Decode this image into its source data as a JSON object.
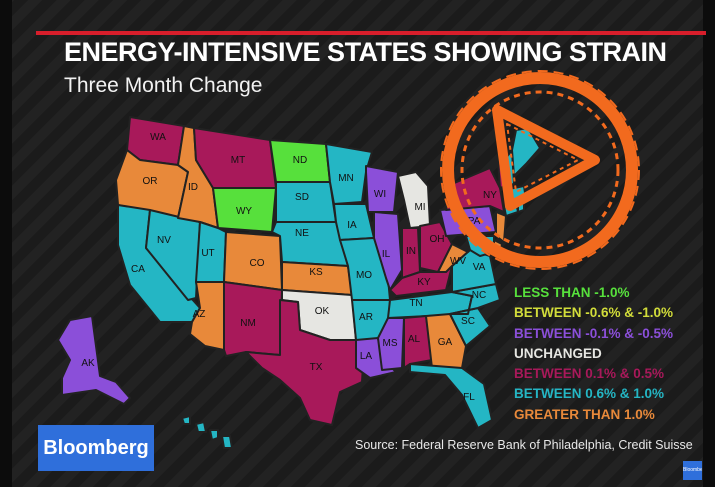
{
  "title": "ENERGY-INTENSIVE STATES SHOWING STRAIN",
  "subtitle": "Three Month Change",
  "source": "Source: Federal Reserve Bank of Philadelphia, Credit Suisse",
  "logo": "Bloomberg",
  "mini_logo": "Bloomberg",
  "colors": {
    "less_than_minus_1": "#57e03c",
    "minus_0_6_to_minus_1": "#d2dd3a",
    "minus_0_1_to_minus_0_5": "#8b4fd9",
    "unchanged": "#e6e6e2",
    "plus_0_1_to_0_5": "#a8195a",
    "plus_0_6_to_1": "#24b6c4",
    "greater_than_1": "#e8893a"
  },
  "legend": [
    {
      "label": "LESS THAN -1.0%",
      "color_key": "less_than_minus_1"
    },
    {
      "label": "BETWEEN -0.6% & -1.0%",
      "color_key": "minus_0_6_to_minus_1"
    },
    {
      "label": "BETWEEN -0.1% & -0.5%",
      "color_key": "minus_0_1_to_minus_0_5"
    },
    {
      "label": "UNCHANGED",
      "color_key": "unchanged"
    },
    {
      "label": "BETWEEN 0.1% & 0.5%",
      "color_key": "plus_0_1_to_0_5"
    },
    {
      "label": "BETWEEN 0.6% & 1.0%",
      "color_key": "plus_0_6_to_1"
    },
    {
      "label": "GREATER THAN 1.0%",
      "color_key": "greater_than_1"
    }
  ],
  "states": {
    "WA": {
      "label": "WA",
      "category": "plus_0_1_to_0_5"
    },
    "OR": {
      "label": "OR",
      "category": "greater_than_1"
    },
    "CA": {
      "label": "CA",
      "category": "plus_0_6_to_1"
    },
    "NV": {
      "label": "NV",
      "category": "plus_0_6_to_1"
    },
    "ID": {
      "label": "ID",
      "category": "greater_than_1"
    },
    "MT": {
      "label": "MT",
      "category": "plus_0_1_to_0_5"
    },
    "WY": {
      "label": "WY",
      "category": "less_than_minus_1"
    },
    "UT": {
      "label": "UT",
      "category": "plus_0_6_to_1"
    },
    "AZ": {
      "label": "AZ",
      "category": "greater_than_1"
    },
    "CO": {
      "label": "CO",
      "category": "greater_than_1"
    },
    "NM": {
      "label": "NM",
      "category": "plus_0_1_to_0_5"
    },
    "ND": {
      "label": "ND",
      "category": "less_than_minus_1"
    },
    "SD": {
      "label": "SD",
      "category": "plus_0_6_to_1"
    },
    "NE": {
      "label": "NE",
      "category": "plus_0_6_to_1"
    },
    "KS": {
      "label": "KS",
      "category": "greater_than_1"
    },
    "OK": {
      "label": "OK",
      "category": "unchanged"
    },
    "TX": {
      "label": "TX",
      "category": "plus_0_1_to_0_5"
    },
    "MN": {
      "label": "MN",
      "category": "plus_0_6_to_1"
    },
    "IA": {
      "label": "IA",
      "category": "plus_0_6_to_1"
    },
    "MO": {
      "label": "MO",
      "category": "plus_0_6_to_1"
    },
    "AR": {
      "label": "AR",
      "category": "plus_0_6_to_1"
    },
    "LA": {
      "label": "LA",
      "category": "minus_0_1_to_minus_0_5"
    },
    "WI": {
      "label": "WI",
      "category": "minus_0_1_to_minus_0_5"
    },
    "IL": {
      "label": "IL",
      "category": "minus_0_1_to_minus_0_5"
    },
    "MI": {
      "label": "MI",
      "category": "unchanged"
    },
    "IN": {
      "label": "IN",
      "category": "plus_0_1_to_0_5"
    },
    "OH": {
      "label": "OH",
      "category": "plus_0_1_to_0_5"
    },
    "KY": {
      "label": "KY",
      "category": "plus_0_1_to_0_5"
    },
    "TN": {
      "label": "TN",
      "category": "plus_0_6_to_1"
    },
    "MS": {
      "label": "MS",
      "category": "minus_0_1_to_minus_0_5"
    },
    "AL": {
      "label": "AL",
      "category": "plus_0_1_to_0_5"
    },
    "GA": {
      "label": "GA",
      "category": "greater_than_1"
    },
    "FL": {
      "label": "FL",
      "category": "plus_0_6_to_1"
    },
    "SC": {
      "label": "SC",
      "category": "plus_0_6_to_1"
    },
    "NC": {
      "label": "NC",
      "category": "plus_0_6_to_1"
    },
    "VA": {
      "label": "VA",
      "category": "plus_0_6_to_1"
    },
    "WV": {
      "label": "WV",
      "category": "greater_than_1"
    },
    "PA": {
      "label": "PA",
      "category": "minus_0_1_to_minus_0_5"
    },
    "NY": {
      "label": "NY",
      "category": "plus_0_1_to_0_5"
    },
    "NJ": {
      "label": "",
      "category": "greater_than_1"
    },
    "DE": {
      "label": "",
      "category": "greater_than_1"
    },
    "MD": {
      "label": "",
      "category": "plus_0_6_to_1"
    },
    "CT": {
      "label": "",
      "category": "plus_0_6_to_1"
    },
    "VT": {
      "label": "",
      "category": "plus_0_1_to_0_5"
    },
    "NH": {
      "label": "",
      "category": "plus_0_6_to_1"
    },
    "MA": {
      "label": "",
      "category": "plus_0_6_to_1"
    },
    "RI": {
      "label": "",
      "category": "plus_0_6_to_1"
    },
    "ME": {
      "label": "",
      "category": "plus_0_6_to_1"
    },
    "AK": {
      "label": "AK",
      "category": "minus_0_1_to_minus_0_5"
    },
    "HI": {
      "label": "",
      "category": "plus_0_6_to_1"
    }
  },
  "play_button": {
    "icon": "play-icon",
    "color": "#f26a1e"
  }
}
